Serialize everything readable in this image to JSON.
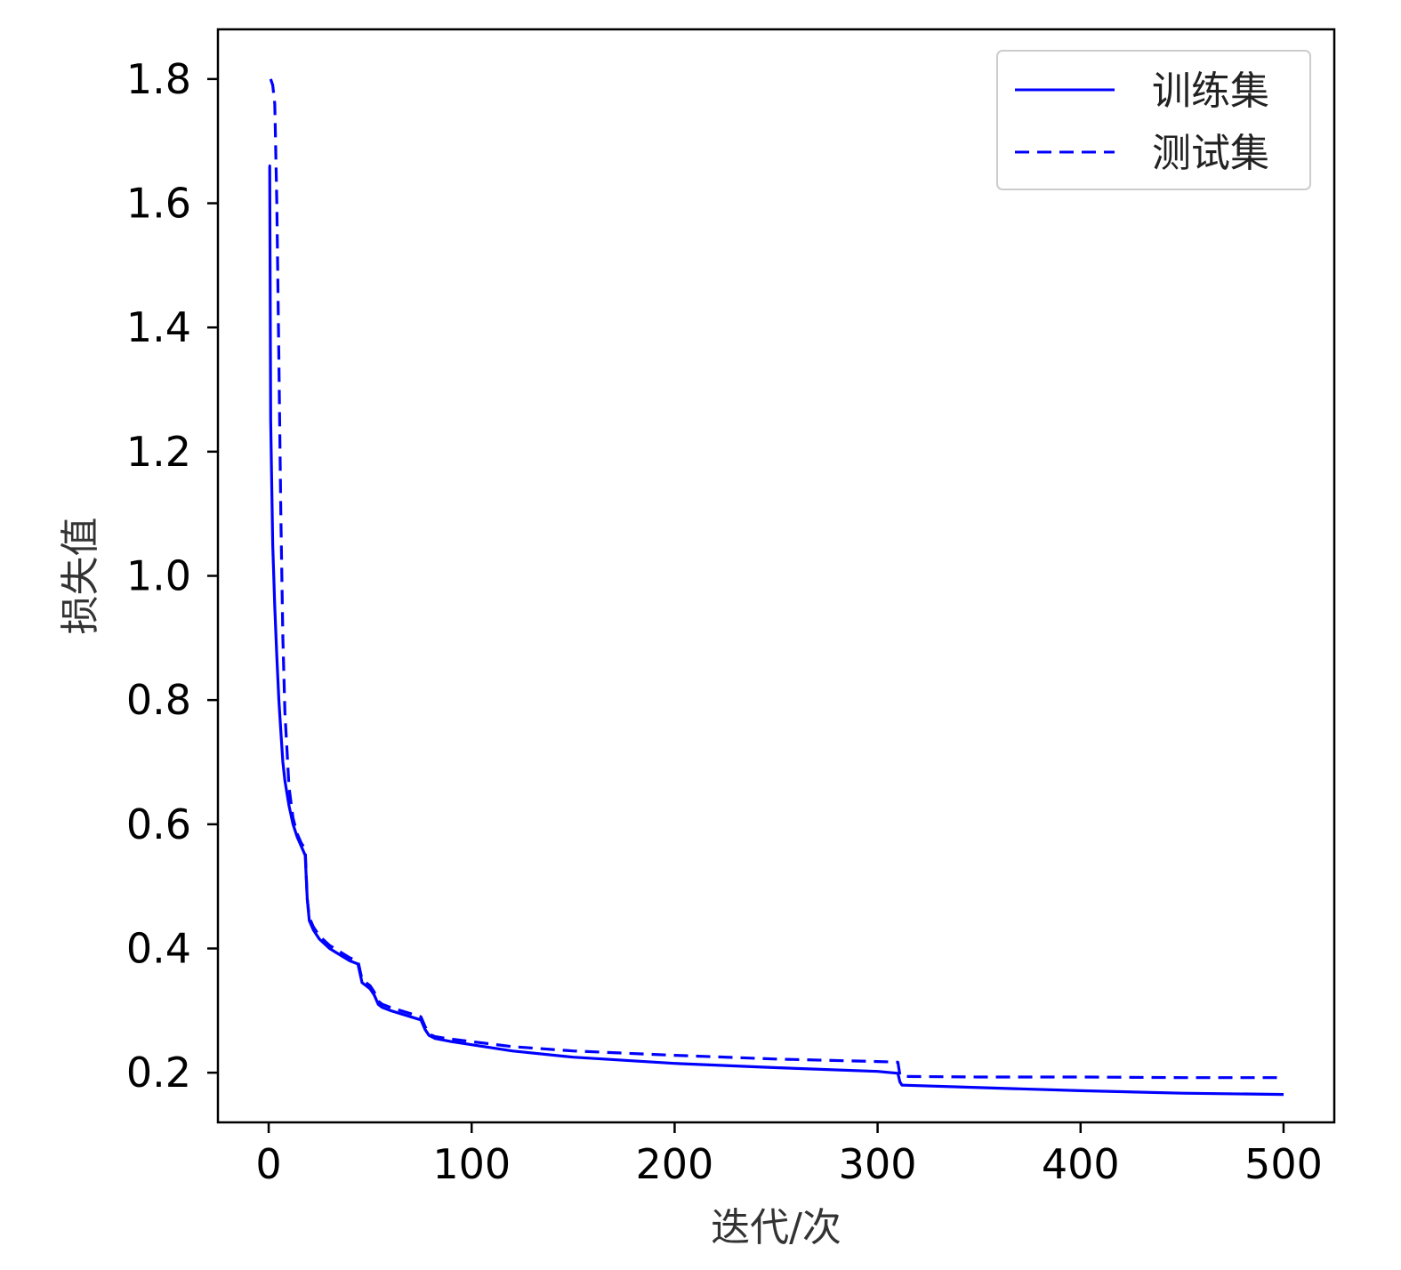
{
  "chart_data": {
    "type": "line",
    "xlabel": "迭代/次",
    "ylabel": "损失值",
    "xlim": [
      -25,
      525
    ],
    "ylim": [
      0.12,
      1.88
    ],
    "xticks": [
      0,
      100,
      200,
      300,
      400,
      500
    ],
    "yticks": [
      0.2,
      0.4,
      0.6,
      0.8,
      1.0,
      1.2,
      1.4,
      1.6,
      1.8
    ],
    "xtick_labels": [
      "0",
      "100",
      "200",
      "300",
      "400",
      "500"
    ],
    "ytick_labels": [
      "0.2",
      "0.4",
      "0.6",
      "0.8",
      "1.0",
      "1.2",
      "1.4",
      "1.6",
      "1.8"
    ],
    "grid": false,
    "legend": "top-right",
    "line_color": "#0000ff",
    "series": [
      {
        "name": "训练集",
        "style": "solid",
        "x": [
          0,
          0.5,
          1,
          2,
          3,
          4,
          5,
          6,
          7,
          8,
          10,
          12,
          14,
          16,
          18,
          19,
          20,
          22,
          25,
          30,
          35,
          40,
          44,
          45,
          46,
          48,
          50,
          52,
          54,
          56,
          60,
          65,
          70,
          75,
          77,
          79,
          82,
          90,
          100,
          120,
          150,
          200,
          250,
          300,
          310,
          311,
          312,
          350,
          400,
          450,
          500
        ],
        "y": [
          1.66,
          1.66,
          1.25,
          1.05,
          0.95,
          0.87,
          0.8,
          0.75,
          0.7,
          0.67,
          0.63,
          0.6,
          0.58,
          0.565,
          0.55,
          0.48,
          0.445,
          0.43,
          0.415,
          0.4,
          0.39,
          0.38,
          0.375,
          0.36,
          0.345,
          0.34,
          0.335,
          0.325,
          0.31,
          0.305,
          0.3,
          0.295,
          0.29,
          0.285,
          0.27,
          0.26,
          0.255,
          0.25,
          0.245,
          0.235,
          0.225,
          0.215,
          0.208,
          0.202,
          0.199,
          0.185,
          0.18,
          0.176,
          0.171,
          0.167,
          0.165
        ]
      },
      {
        "name": "测试集",
        "style": "dashed",
        "x": [
          1,
          2,
          3,
          4,
          5,
          6,
          7,
          8,
          10,
          12,
          14,
          16,
          18,
          19,
          20,
          22,
          25,
          30,
          35,
          40,
          44,
          45,
          46,
          48,
          50,
          52,
          54,
          56,
          60,
          65,
          70,
          75,
          77,
          79,
          82,
          90,
          100,
          120,
          150,
          200,
          250,
          300,
          310,
          311,
          312,
          350,
          400,
          450,
          500
        ],
        "y": [
          1.8,
          1.79,
          1.76,
          1.6,
          1.35,
          1.1,
          0.9,
          0.78,
          0.66,
          0.61,
          0.585,
          0.57,
          0.56,
          0.48,
          0.45,
          0.435,
          0.42,
          0.405,
          0.395,
          0.385,
          0.38,
          0.365,
          0.35,
          0.345,
          0.34,
          0.33,
          0.315,
          0.31,
          0.305,
          0.3,
          0.295,
          0.29,
          0.275,
          0.262,
          0.258,
          0.254,
          0.25,
          0.242,
          0.235,
          0.228,
          0.222,
          0.218,
          0.217,
          0.196,
          0.194,
          0.193,
          0.193,
          0.192,
          0.192
        ]
      }
    ]
  }
}
